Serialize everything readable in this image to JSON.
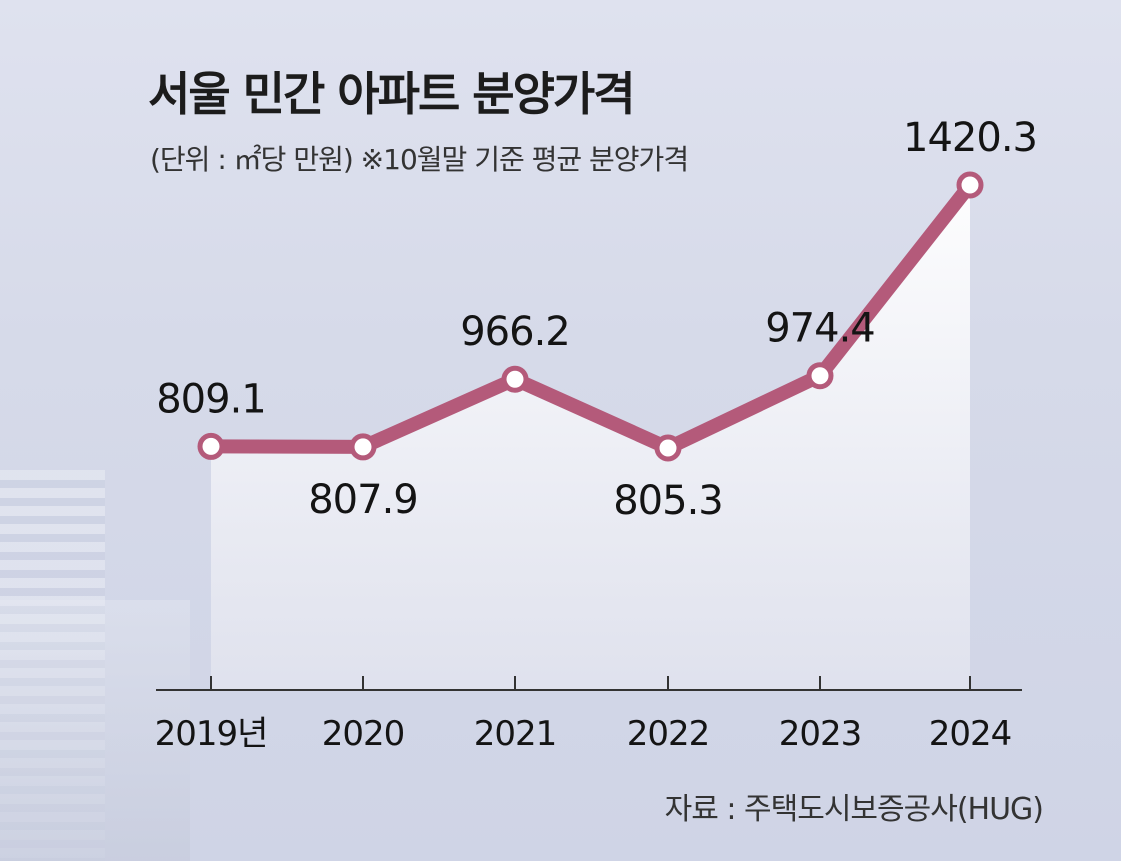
{
  "title": "서울 민간 아파트 분양가격",
  "subtitle": "(단위 : ㎡당 만원)  ※10월말 기준 평균 분양가격",
  "source": "자료 : 주택도시보증공사(HUG)",
  "colors": {
    "line": "#b45a7a",
    "area_top": "#ffffff",
    "area_bottom": "#e1e3ee",
    "axis": "#333333"
  },
  "chart_data": {
    "type": "line",
    "categories": [
      "2019년",
      "2020",
      "2021",
      "2022",
      "2023",
      "2024"
    ],
    "values": [
      809.1,
      807.9,
      966.2,
      805.3,
      974.4,
      1420.3
    ],
    "value_labels": [
      "809.1",
      "807.9",
      "966.2",
      "805.3",
      "974.4",
      "1420.3"
    ],
    "title": "서울 민간 아파트 분양가격",
    "ylabel": "",
    "xlabel": ""
  }
}
